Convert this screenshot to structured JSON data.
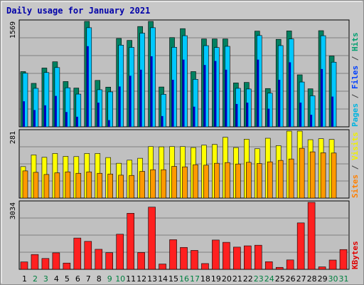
{
  "chart_data": {
    "type": "bar",
    "title": "Daily usage for January 2021",
    "days": [
      "1",
      "2",
      "3",
      "4",
      "5",
      "6",
      "7",
      "8",
      "9",
      "10",
      "11",
      "12",
      "13",
      "14",
      "15",
      "16",
      "17",
      "18",
      "19",
      "20",
      "21",
      "22",
      "23",
      "24",
      "25",
      "26",
      "27",
      "28",
      "29",
      "30",
      "31"
    ],
    "weekend_days": [
      "2",
      "3",
      "9",
      "10",
      "16",
      "17",
      "23",
      "24",
      "30",
      "31"
    ],
    "panels": [
      {
        "max_label": "1569",
        "legend": [
          {
            "text": "Pages",
            "color": "#00b4e0"
          },
          {
            "text": " / ",
            "color": "#404040"
          },
          {
            "text": "Files",
            "color": "#0040ff"
          },
          {
            "text": " / ",
            "color": "#404040"
          },
          {
            "text": "Hits",
            "color": "#00a070"
          }
        ],
        "series": [
          {
            "name": "Hits",
            "color": "#008060",
            "values": [
              822,
              647,
              875,
              968,
              674,
              577,
              1569,
              691,
              591,
              1315,
              1286,
              1493,
              1569,
              593,
              1328,
              1461,
              822,
              1308,
              1308,
              1308,
              653,
              661,
              1424,
              570,
              1302,
              1427,
              774,
              566,
              1431,
              1054,
              0
            ]
          },
          {
            "name": "Files",
            "color": "#00c8ff",
            "values": [
              798,
              573,
              808,
              882,
              581,
              487,
              1475,
              552,
              520,
              1216,
              1182,
              1394,
              1475,
              484,
              1184,
              1356,
              707,
              1208,
              1180,
              1198,
              573,
              563,
              1359,
              501,
              1209,
              1308,
              667,
              462,
              1356,
              962,
              0
            ]
          },
          {
            "name": "Pages",
            "color": "#0000c0",
            "values": [
              380,
              250,
              320,
              460,
              220,
              150,
              1200,
              360,
              100,
              600,
              760,
              850,
              1050,
              160,
              700,
              1000,
              300,
              920,
              980,
              850,
              340,
              360,
              1000,
              270,
              700,
              960,
              360,
              180,
              860,
              450,
              0
            ]
          }
        ]
      },
      {
        "max_label": "281",
        "legend": [
          {
            "text": "Sites",
            "color": "#ff8000"
          },
          {
            "text": " / ",
            "color": "#404040"
          },
          {
            "text": "Visits",
            "color": "#f0f000"
          }
        ],
        "series": [
          {
            "name": "Visits",
            "color": "#ffff00",
            "values": [
              132,
              181,
              171,
              187,
              175,
              174,
              187,
              187,
              170,
              146,
              159,
              167,
              216,
              215,
              216,
              216,
              212,
              222,
              225,
              255,
              212,
              247,
              207,
              251,
              220,
              281,
              281,
              245,
              249,
              246,
              0
            ]
          },
          {
            "name": "Sites",
            "color": "#ff9900",
            "values": [
              114,
              108,
              99,
              106,
              110,
              104,
              110,
              104,
              101,
              96,
              95,
              112,
              119,
              119,
              133,
              131,
              140,
              138,
              146,
              149,
              143,
              150,
              145,
              152,
              158,
              164,
              209,
              194,
              190,
              189,
              0
            ]
          }
        ]
      },
      {
        "max_label": "3034",
        "legend": [
          {
            "text": "KBytes",
            "color": "#e00000"
          }
        ],
        "series": [
          {
            "name": "KBytes",
            "color": "#ff2020",
            "values": [
              335,
              671,
              491,
              746,
              284,
              1417,
              1266,
              907,
              753,
              1590,
              2539,
              762,
              2817,
              240,
              1342,
              992,
              857,
              261,
              1327,
              1223,
              1005,
              1064,
              1092,
              345,
              89,
              425,
              2103,
              3034,
              111,
              420,
              896
            ]
          }
        ]
      }
    ]
  }
}
